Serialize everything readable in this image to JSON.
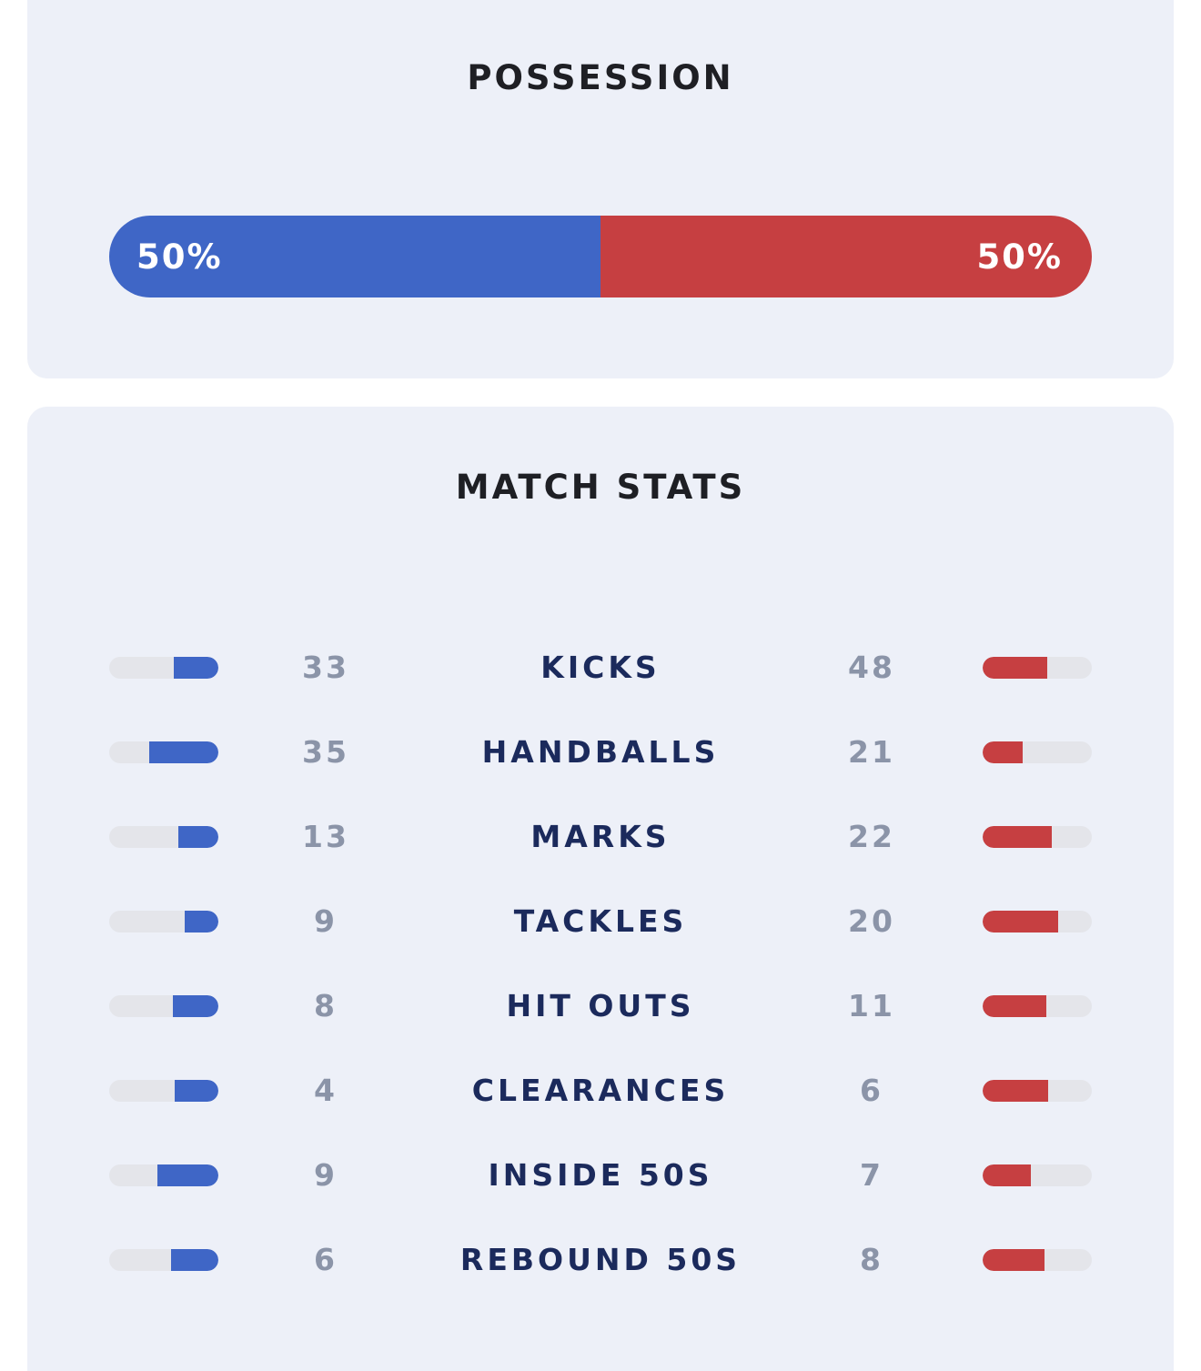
{
  "possession": {
    "title": "POSSESSION",
    "home": {
      "label": "50%",
      "share": 0.5,
      "color": "#3f66c6"
    },
    "away": {
      "label": "50%",
      "share": 0.5,
      "color": "#c63f41"
    }
  },
  "match_stats": {
    "title": "MATCH STATS",
    "colors": {
      "home": "#3f66c6",
      "away": "#c63f41",
      "track": "#e4e5ea"
    },
    "rows": [
      {
        "label": "KICKS",
        "home": "33",
        "away": "48",
        "home_share": 0.41,
        "away_share": 0.59
      },
      {
        "label": "HANDBALLS",
        "home": "35",
        "away": "21",
        "home_share": 0.63,
        "away_share": 0.37
      },
      {
        "label": "MARKS",
        "home": "13",
        "away": "22",
        "home_share": 0.37,
        "away_share": 0.63
      },
      {
        "label": "TACKLES",
        "home": "9",
        "away": "20",
        "home_share": 0.31,
        "away_share": 0.69
      },
      {
        "label": "HIT OUTS",
        "home": "8",
        "away": "11",
        "home_share": 0.42,
        "away_share": 0.58
      },
      {
        "label": "CLEARANCES",
        "home": "4",
        "away": "6",
        "home_share": 0.4,
        "away_share": 0.6
      },
      {
        "label": "INSIDE 50S",
        "home": "9",
        "away": "7",
        "home_share": 0.56,
        "away_share": 0.44
      },
      {
        "label": "REBOUND 50S",
        "home": "6",
        "away": "8",
        "home_share": 0.43,
        "away_share": 0.57
      }
    ]
  }
}
